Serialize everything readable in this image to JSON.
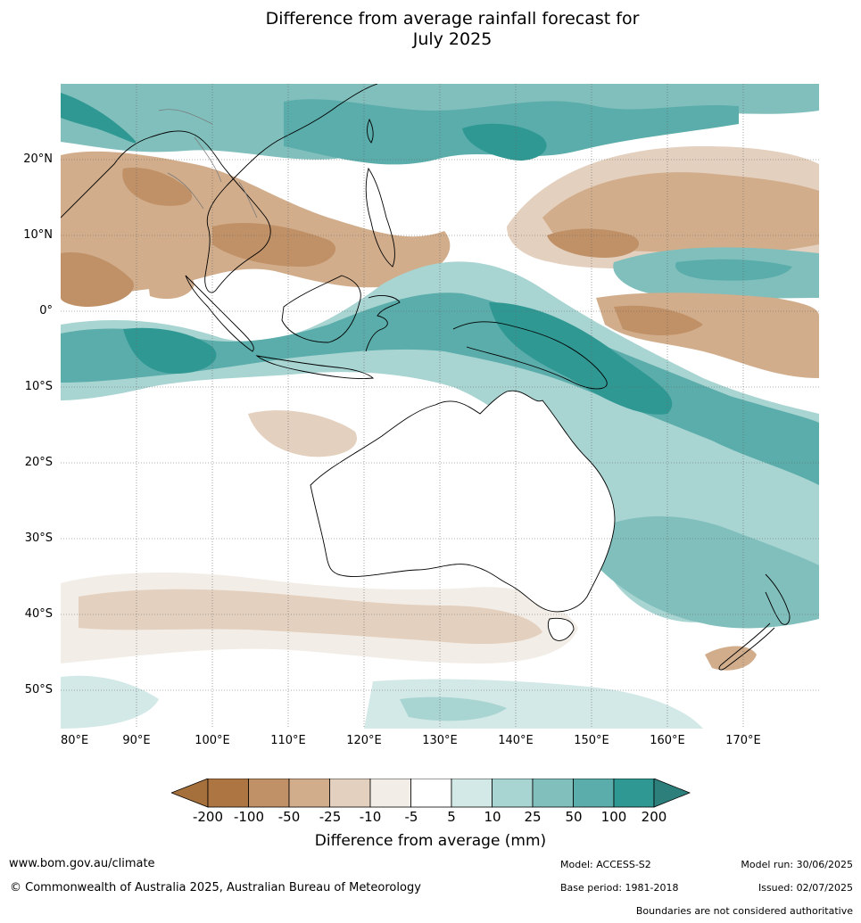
{
  "title": {
    "line1": "Difference from average rainfall forecast for",
    "line2": "July 2025"
  },
  "map": {
    "lat_labels": [
      "20°N",
      "10°N",
      "0°",
      "10°S",
      "20°S",
      "30°S",
      "40°S",
      "50°S"
    ],
    "lat_values": [
      20,
      10,
      0,
      -10,
      -20,
      -30,
      -40,
      -50
    ],
    "lon_labels": [
      "80°E",
      "90°E",
      "100°E",
      "110°E",
      "120°E",
      "130°E",
      "140°E",
      "150°E",
      "160°E",
      "170°E"
    ],
    "lon_values": [
      80,
      90,
      100,
      110,
      120,
      130,
      140,
      150,
      160,
      170
    ],
    "lon_range": [
      80,
      180
    ],
    "lat_range": [
      -55,
      30
    ],
    "grid": "dotted"
  },
  "colorbar": {
    "ticks": [
      "-200",
      "-100",
      "-50",
      "-25",
      "-10",
      "-5",
      "5",
      "10",
      "25",
      "50",
      "100",
      "200"
    ],
    "colors": [
      "#a5703c",
      "#ad7541",
      "#c09066",
      "#d1ad8c",
      "#e4d0be",
      "#f2ede6",
      "#ffffff",
      "#d3e9e7",
      "#a8d4d2",
      "#81bfbd",
      "#5aadaa",
      "#2f9893",
      "#2d7f7b"
    ],
    "label": "Difference from average (mm)"
  },
  "footer": {
    "url": "www.bom.gov.au/climate",
    "copyright": "© Commonwealth of Australia 2025, Australian Bureau of Meteorology",
    "model": "Model: ACCESS-S2",
    "base_period": "Base period: 1981-2018",
    "model_run": "Model run: 30/06/2025",
    "issued": "Issued: 02/07/2025",
    "disclaimer": "Boundaries are not considered authoritative"
  }
}
